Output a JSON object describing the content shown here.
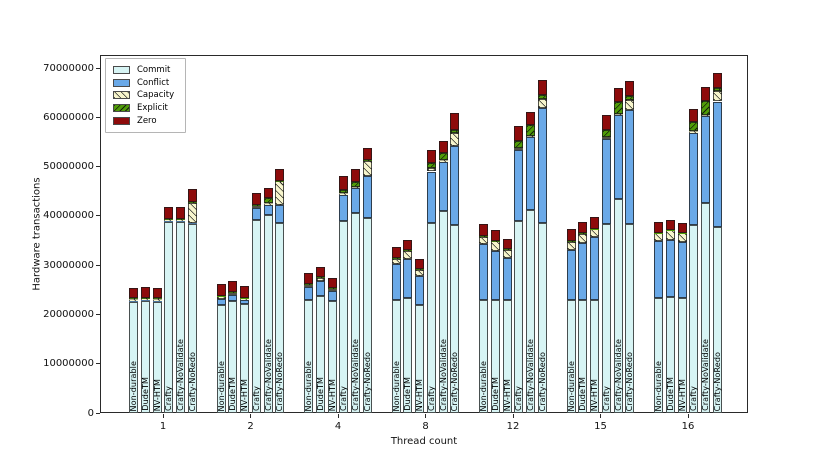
{
  "chart_data": {
    "type": "bar",
    "stacked": true,
    "title": "",
    "xlabel": "Thread count",
    "ylabel": "Hardware transactions",
    "ylim": [
      0,
      72600000
    ],
    "grid": false,
    "yticks": [
      0,
      10000000,
      20000000,
      30000000,
      40000000,
      50000000,
      60000000,
      70000000
    ],
    "ytick_labels": [
      "0",
      "10000000",
      "20000000",
      "30000000",
      "40000000",
      "50000000",
      "60000000",
      "70000000"
    ],
    "groups": [
      "1",
      "2",
      "4",
      "8",
      "12",
      "15",
      "16"
    ],
    "bar_labels": [
      "Non-durable",
      "DudeTM",
      "NV-HTM",
      "Crafty",
      "Crafty-NoValidate",
      "Crafty-NoRedo"
    ],
    "legend": {
      "position": "upper left",
      "entries": [
        "Commit",
        "Conflict",
        "Capacity",
        "Explicit",
        "Zero"
      ]
    },
    "colors": {
      "commit": "#d7f4f4",
      "conflict": "#6aa9e8",
      "capacity": "#f7f5cc",
      "explicit": "#4f9b08",
      "zero": "#8e0b0b",
      "bar_edge": "#1c1c1c"
    },
    "series": [
      {
        "name": "Commit",
        "color": "#d7f4f4",
        "hatch": "none",
        "values": [
          [
            22600000,
            22700000,
            22600000,
            38700000,
            38700000,
            38300000
          ],
          [
            22000000,
            22800000,
            22100000,
            39200000,
            40200000,
            38600000
          ],
          [
            23000000,
            23700000,
            22700000,
            38900000,
            40500000,
            39500000
          ],
          [
            23000000,
            23300000,
            22000000,
            38600000,
            40900000,
            38200000
          ],
          [
            23000000,
            23000000,
            23000000,
            38900000,
            41200000,
            38600000
          ],
          [
            23000000,
            23000000,
            23000000,
            38400000,
            43500000,
            38400000
          ],
          [
            23300000,
            23600000,
            23400000,
            38200000,
            42600000,
            37800000
          ]
        ]
      },
      {
        "name": "Conflict",
        "color": "#6aa9e8",
        "hatch": "none",
        "values": [
          [
            200000,
            200000,
            200000,
            200000,
            200000,
            200000
          ],
          [
            1200000,
            1100000,
            800000,
            2400000,
            2100000,
            3700000
          ],
          [
            2500000,
            3000000,
            2000000,
            5400000,
            5200000,
            8500000
          ],
          [
            7200000,
            8000000,
            5700000,
            10400000,
            10100000,
            15900000
          ],
          [
            11200000,
            9800000,
            8500000,
            14400000,
            14800000,
            23300000
          ],
          [
            10000000,
            11400000,
            12800000,
            17100000,
            17000000,
            23100000
          ],
          [
            11500000,
            11600000,
            11300000,
            18600000,
            17600000,
            25400000
          ]
        ]
      },
      {
        "name": "Capacity",
        "color": "#f7f5cc",
        "hatch": "/",
        "values": [
          [
            400000,
            400000,
            400000,
            400000,
            400000,
            4200000
          ],
          [
            500000,
            500000,
            400000,
            500000,
            300000,
            4700000
          ],
          [
            500000,
            700000,
            500000,
            300000,
            200000,
            3200000
          ],
          [
            1100000,
            1600000,
            1400000,
            700000,
            300000,
            2700000
          ],
          [
            1600000,
            2000000,
            1600000,
            500000,
            200000,
            1800000
          ],
          [
            1700000,
            2000000,
            1500000,
            500000,
            200000,
            2100000
          ],
          [
            1700000,
            1900000,
            1800000,
            400000,
            200000,
            2200000
          ]
        ]
      },
      {
        "name": "Explicit",
        "color": "#4f9b08",
        "hatch": "\\",
        "values": [
          [
            50000,
            50000,
            50000,
            100000,
            100000,
            100000
          ],
          [
            100000,
            100000,
            100000,
            200000,
            1000000,
            100000
          ],
          [
            100000,
            100000,
            100000,
            700000,
            1000000,
            100000
          ],
          [
            100000,
            100000,
            100000,
            1000000,
            1500000,
            700000
          ],
          [
            100000,
            100000,
            100000,
            1300000,
            2200000,
            900000
          ],
          [
            100000,
            100000,
            100000,
            1500000,
            2500000,
            800000
          ],
          [
            100000,
            100000,
            100000,
            1800000,
            3000000,
            500000
          ]
        ]
      },
      {
        "name": "Zero",
        "color": "#8e0b0b",
        "hatch": "none",
        "values": [
          [
            2200000,
            2200000,
            2200000,
            2300000,
            2300000,
            2600000
          ],
          [
            2400000,
            2300000,
            2300000,
            2300000,
            2000000,
            2400000
          ],
          [
            2300000,
            2100000,
            2100000,
            2700000,
            2700000,
            2500000
          ],
          [
            2200000,
            2100000,
            2000000,
            2700000,
            2300000,
            3400000
          ],
          [
            2400000,
            2200000,
            2100000,
            3100000,
            2600000,
            3000000
          ],
          [
            2500000,
            2300000,
            2300000,
            3000000,
            2700000,
            2900000
          ],
          [
            2100000,
            1900000,
            1900000,
            2600000,
            2700000,
            3100000
          ]
        ]
      }
    ]
  }
}
